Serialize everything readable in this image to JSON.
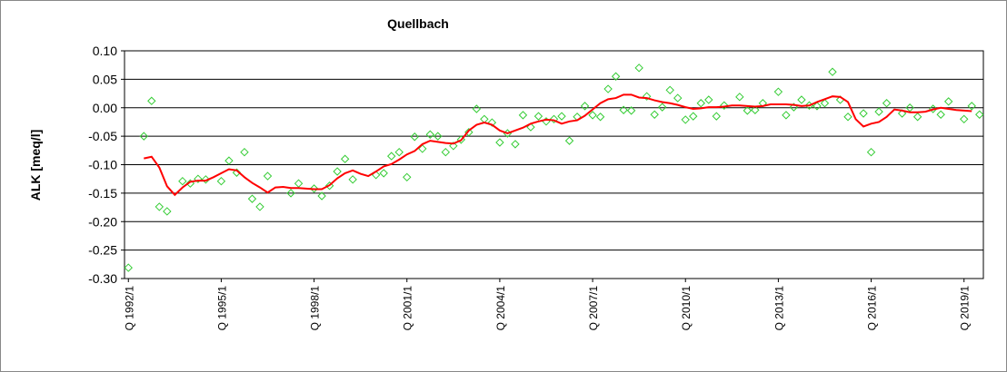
{
  "chart_data": {
    "type": "line",
    "title": "Quellbach",
    "y_label": "ALK [meq/l]",
    "categories": [
      "Q 1992/1",
      null,
      null,
      null,
      null,
      null,
      null,
      null,
      null,
      null,
      null,
      null,
      "Q 1995/1",
      null,
      null,
      null,
      null,
      null,
      null,
      null,
      null,
      null,
      null,
      null,
      "Q 1998/1",
      null,
      null,
      null,
      null,
      null,
      null,
      null,
      null,
      null,
      null,
      null,
      "Q 2001/1",
      null,
      null,
      null,
      null,
      null,
      null,
      null,
      null,
      null,
      null,
      null,
      "Q 2004/1",
      null,
      null,
      null,
      null,
      null,
      null,
      null,
      null,
      null,
      null,
      null,
      "Q 2007/1",
      null,
      null,
      null,
      null,
      null,
      null,
      null,
      null,
      null,
      null,
      null,
      "Q 2010/1",
      null,
      null,
      null,
      null,
      null,
      null,
      null,
      null,
      null,
      null,
      null,
      "Q 2013/1",
      null,
      null,
      null,
      null,
      null,
      null,
      null,
      null,
      null,
      null,
      null,
      "Q 2016/1",
      null,
      null,
      null,
      null,
      null,
      null,
      null,
      null,
      null,
      null,
      null,
      "Q 2019/1",
      null,
      null
    ],
    "series": [
      {
        "type": "scatter",
        "color": "#33cc33",
        "values": [
          -0.281,
          null,
          -0.05,
          0.012,
          -0.174,
          -0.182,
          null,
          -0.129,
          -0.133,
          -0.125,
          -0.126,
          null,
          -0.129,
          -0.093,
          -0.114,
          -0.078,
          -0.16,
          -0.174,
          -0.12,
          null,
          null,
          -0.15,
          -0.133,
          null,
          -0.142,
          -0.155,
          -0.137,
          -0.112,
          -0.09,
          -0.126,
          null,
          null,
          -0.118,
          -0.115,
          -0.085,
          -0.078,
          -0.122,
          -0.051,
          -0.072,
          -0.047,
          -0.05,
          -0.078,
          -0.067,
          -0.056,
          -0.043,
          -0.002,
          -0.02,
          -0.026,
          -0.061,
          -0.045,
          -0.064,
          -0.013,
          -0.034,
          -0.015,
          -0.024,
          -0.02,
          -0.015,
          -0.058,
          -0.016,
          0.003,
          -0.013,
          -0.016,
          0.033,
          0.055,
          -0.004,
          -0.005,
          0.07,
          0.02,
          -0.012,
          0.001,
          0.031,
          0.017,
          -0.021,
          -0.015,
          0.008,
          0.014,
          -0.015,
          0.004,
          null,
          0.019,
          -0.005,
          -0.004,
          0.008,
          null,
          0.028,
          -0.013,
          0.001,
          0.014,
          0.004,
          0.003,
          0.008,
          0.063,
          0.014,
          -0.016,
          null,
          -0.01,
          -0.078,
          -0.007,
          0.008,
          null,
          -0.01,
          0,
          -0.016,
          null,
          -0.002,
          -0.012,
          0.011,
          null,
          -0.02,
          0.003,
          -0.012
        ]
      },
      {
        "type": "line",
        "color": "#ff0000",
        "values": [
          null,
          null,
          -0.089,
          -0.086,
          -0.105,
          -0.138,
          -0.153,
          -0.14,
          -0.13,
          -0.128,
          -0.128,
          -0.122,
          -0.115,
          -0.108,
          -0.11,
          -0.122,
          -0.132,
          -0.14,
          -0.149,
          -0.14,
          -0.139,
          -0.141,
          -0.141,
          -0.142,
          -0.143,
          -0.143,
          -0.136,
          -0.124,
          -0.115,
          -0.11,
          -0.116,
          -0.12,
          -0.112,
          -0.103,
          -0.099,
          -0.091,
          -0.082,
          -0.076,
          -0.064,
          -0.058,
          -0.06,
          -0.062,
          -0.063,
          -0.057,
          -0.04,
          -0.03,
          -0.026,
          -0.03,
          -0.04,
          -0.045,
          -0.04,
          -0.035,
          -0.028,
          -0.024,
          -0.021,
          -0.022,
          -0.028,
          -0.024,
          -0.022,
          -0.014,
          -0.003,
          0.008,
          0.015,
          0.017,
          0.023,
          0.023,
          0.018,
          0.017,
          0.013,
          0.01,
          0.008,
          0.005,
          0.001,
          -0.002,
          -0.001,
          0.001,
          0.001,
          0.002,
          0.004,
          0.004,
          0.003,
          0.002,
          0.003,
          0.006,
          0.006,
          0.006,
          0.005,
          0.003,
          0.004,
          0.01,
          0.015,
          0.02,
          0.019,
          0.01,
          -0.02,
          -0.033,
          -0.028,
          -0.025,
          -0.016,
          -0.003,
          -0.005,
          -0.008,
          -0.008,
          -0.007,
          -0.003,
          0,
          -0.002,
          -0.004,
          -0.005,
          -0.006,
          null
        ]
      }
    ],
    "ylim": [
      -0.3,
      0.1
    ],
    "yticks": [
      {
        "value": 0.1,
        "label": "0.10"
      },
      0.05,
      {
        "value": 0,
        "label": "0.00"
      },
      -0.05,
      {
        "value": -0.1,
        "label": "-0.10"
      },
      -0.15,
      {
        "value": -0.2,
        "label": "-0.20"
      },
      -0.25,
      {
        "value": -0.3,
        "label": "-0.30"
      }
    ],
    "grid": true
  }
}
